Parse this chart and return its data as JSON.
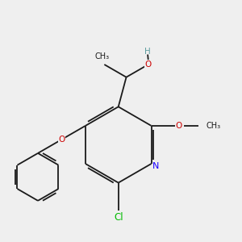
{
  "background_color": "#efefef",
  "bond_color": "#1a1a1a",
  "figsize": [
    3.0,
    3.0
  ],
  "dpi": 100,
  "atom_colors": {
    "N": "#1a00ff",
    "O": "#cc0000",
    "Cl": "#00bb00",
    "H": "#5f9ea0",
    "C": "#1a1a1a"
  },
  "font_size": 7.5,
  "bond_lw": 1.3
}
